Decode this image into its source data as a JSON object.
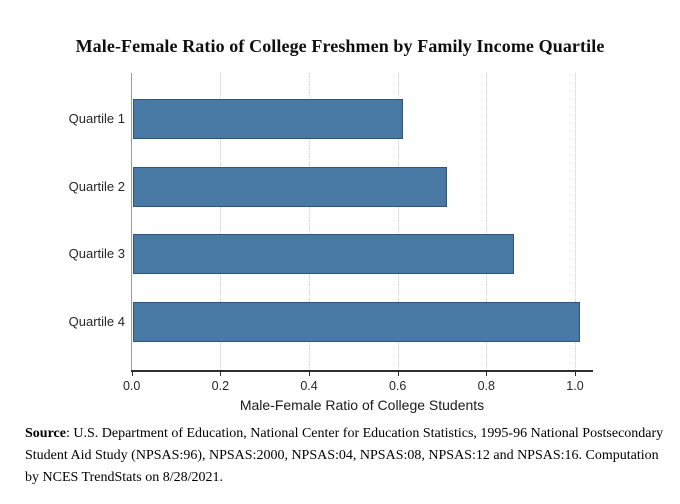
{
  "page": {
    "background": "#ffffff"
  },
  "chart_data": {
    "type": "bar",
    "orientation": "horizontal",
    "title": "Male-Female Ratio of College Freshmen by Family Income Quartile",
    "categories": [
      "Quartile 1",
      "Quartile 2",
      "Quartile 3",
      "Quartile 4"
    ],
    "values": [
      0.61,
      0.71,
      0.86,
      1.01
    ],
    "xlabel": "Male-Female Ratio of College Students",
    "ylabel": "",
    "xlim": [
      0,
      1.04
    ],
    "ticks": [
      0.0,
      0.2,
      0.4,
      0.6,
      0.8,
      1.0
    ],
    "tick_labels": [
      "0.0",
      "0.2",
      "0.4",
      "0.6",
      "0.8",
      "1.0"
    ],
    "gridline_values": [
      0.2,
      0.4,
      0.6,
      0.8,
      1.0
    ],
    "grid_style": "dotted",
    "legend_position": "none",
    "colors": {
      "bar_fill": "#4878a4",
      "bar_border": "#2e567c",
      "grid_line": "#cdcdcd",
      "x_axis_line": "#2e2e2e",
      "y_axis_line": "#9a9a9a",
      "text": "#262626"
    }
  },
  "source_note": {
    "label": "Source",
    "text": ": U.S. Department of Education, National Center for Education Statistics, 1995-96 National Postsecondary Student Aid Study (NPSAS:96), NPSAS:2000, NPSAS:04, NPSAS:08, NPSAS:12 and NPSAS:16. Computation by NCES TrendStats on 8/28/2021."
  }
}
